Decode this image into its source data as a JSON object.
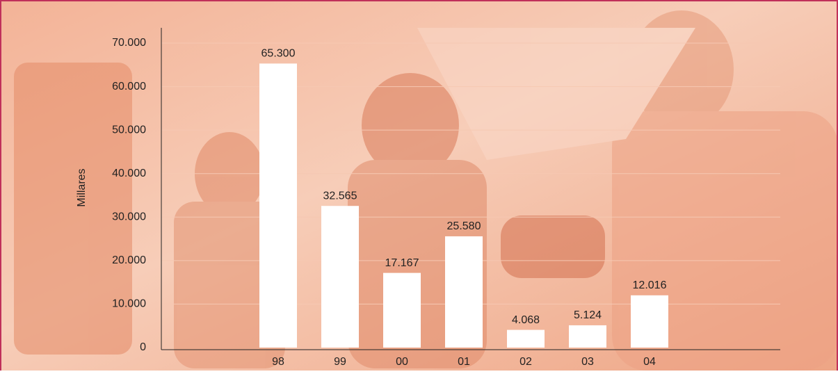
{
  "chart_data": {
    "type": "bar",
    "y_label": "Millares",
    "categories": [
      "98",
      "99",
      "00",
      "01",
      "02",
      "03",
      "04"
    ],
    "values": [
      65300,
      32565,
      17167,
      25580,
      4068,
      5124,
      12016
    ],
    "value_labels": [
      "65.300",
      "32.565",
      "17.167",
      "25.580",
      "4.068",
      "5.124",
      "12.016"
    ],
    "color": "#ffffff",
    "ylim": [
      0,
      70000
    ],
    "yticks": [
      0,
      {
        "value": 10000,
        "label": "10.000"
      },
      {
        "value": 20000,
        "label": "20.000"
      },
      {
        "value": 30000,
        "label": "30.000"
      },
      {
        "value": 40000,
        "label": "40.000"
      },
      {
        "value": 50000,
        "label": "50.000"
      },
      {
        "value": 60000,
        "label": "60.000"
      },
      {
        "value": 70000,
        "label": "70.000"
      }
    ],
    "grid": true
  }
}
